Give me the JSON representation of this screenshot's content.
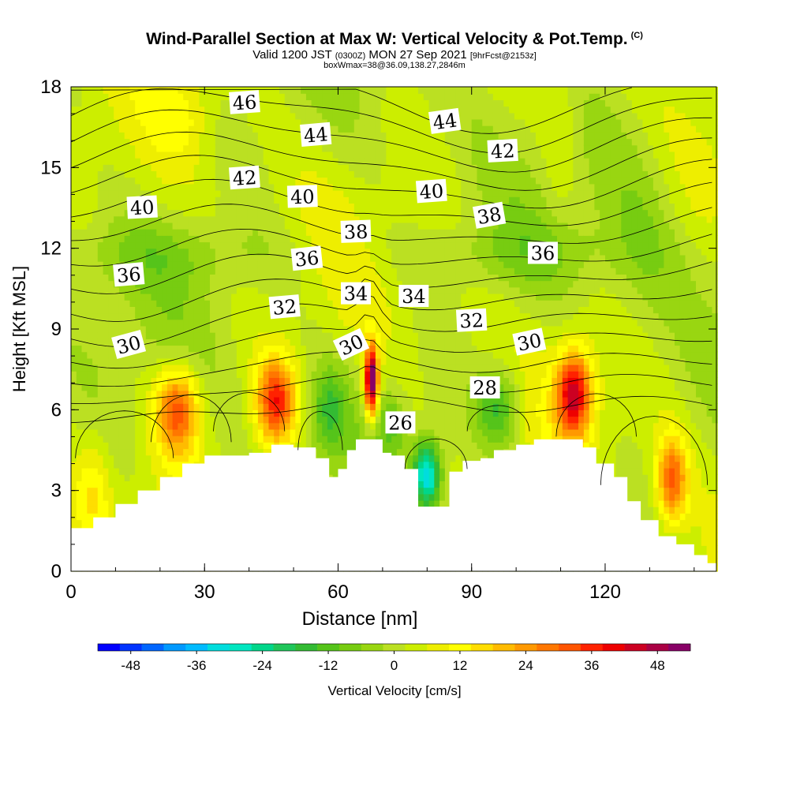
{
  "title": {
    "main": "Wind-Parallel Section at Max W: Vertical Velocity & Pot.Temp.",
    "copyright": "(C)",
    "valid_prefix": "Valid 1200 JST",
    "valid_z": "(0300Z)",
    "valid_date": "MON 27 Sep 2021",
    "fcst": "[9hrFcst@2153z]",
    "boxinfo": "boxWmax=38@36.09,138.27,2846m"
  },
  "chart_data": {
    "type": "heatmap",
    "xlabel": "Distance [nm]",
    "ylabel": "Height [Kft MSL]",
    "xlim": [
      0,
      145
    ],
    "ylim": [
      0,
      18
    ],
    "x_ticks": [
      0,
      30,
      60,
      90,
      120
    ],
    "y_ticks": [
      0,
      3,
      6,
      9,
      12,
      15,
      18
    ],
    "colorbar": {
      "label": "Vertical Velocity [cm/s]",
      "ticks": [
        -48,
        -36,
        -24,
        -12,
        0,
        12,
        24,
        36,
        48
      ],
      "range": [
        -54,
        54
      ],
      "step": 4,
      "colors": [
        "#0000ff",
        "#0033ff",
        "#0066ff",
        "#0099ff",
        "#00bbff",
        "#00dddd",
        "#00e6c0",
        "#00d68a",
        "#1fc65a",
        "#33bb33",
        "#55c41a",
        "#77cc11",
        "#99d611",
        "#bbe022",
        "#ccee00",
        "#eeee00",
        "#ffff00",
        "#ffdd00",
        "#ffbb00",
        "#ff9900",
        "#ff7700",
        "#ff5500",
        "#ff2200",
        "#ee0000",
        "#cc0022",
        "#aa0044",
        "#880066"
      ]
    },
    "terrain_kft": [
      [
        0,
        1.6
      ],
      [
        5,
        2.0
      ],
      [
        10,
        2.5
      ],
      [
        15,
        3.0
      ],
      [
        20,
        3.5
      ],
      [
        25,
        4.0
      ],
      [
        30,
        4.3
      ],
      [
        40,
        4.4
      ],
      [
        45,
        4.7
      ],
      [
        50,
        4.6
      ],
      [
        55,
        4.2
      ],
      [
        58,
        3.5
      ],
      [
        60,
        3.8
      ],
      [
        62,
        4.5
      ],
      [
        64,
        4.9
      ],
      [
        68,
        4.9
      ],
      [
        70,
        4.4
      ],
      [
        72,
        4.3
      ],
      [
        75,
        3.8
      ],
      [
        78,
        2.4
      ],
      [
        83,
        2.4
      ],
      [
        85,
        3.7
      ],
      [
        88,
        4.1
      ],
      [
        92,
        4.2
      ],
      [
        95,
        4.5
      ],
      [
        100,
        4.7
      ],
      [
        104,
        4.9
      ],
      [
        110,
        4.9
      ],
      [
        115,
        4.6
      ],
      [
        118,
        4.0
      ],
      [
        122,
        3.5
      ],
      [
        125,
        2.6
      ],
      [
        128,
        1.9
      ],
      [
        132,
        1.3
      ],
      [
        136,
        1.0
      ],
      [
        140,
        0.6
      ],
      [
        143,
        0.3
      ],
      [
        145,
        0.3
      ]
    ],
    "potential_temperature_labels": [
      {
        "value": "46",
        "x": 39,
        "y": 17.4,
        "angle": -4
      },
      {
        "value": "44",
        "x": 55,
        "y": 16.2,
        "angle": -5
      },
      {
        "value": "44",
        "x": 84,
        "y": 16.7,
        "angle": -8
      },
      {
        "value": "42",
        "x": 39,
        "y": 14.6,
        "angle": -4
      },
      {
        "value": "42",
        "x": 97,
        "y": 15.6,
        "angle": -3
      },
      {
        "value": "40",
        "x": 16,
        "y": 13.5,
        "angle": -3
      },
      {
        "value": "40",
        "x": 52,
        "y": 13.9,
        "angle": -2
      },
      {
        "value": "40",
        "x": 81,
        "y": 14.1,
        "angle": -4
      },
      {
        "value": "38",
        "x": 64,
        "y": 12.6,
        "angle": -2
      },
      {
        "value": "38",
        "x": 94,
        "y": 13.2,
        "angle": -10
      },
      {
        "value": "36",
        "x": 13,
        "y": 11.0,
        "angle": -5
      },
      {
        "value": "36",
        "x": 53,
        "y": 11.6,
        "angle": -6
      },
      {
        "value": "36",
        "x": 106,
        "y": 11.8,
        "angle": 0
      },
      {
        "value": "34",
        "x": 64,
        "y": 10.3,
        "angle": 0
      },
      {
        "value": "34",
        "x": 77,
        "y": 10.2,
        "angle": 0
      },
      {
        "value": "32",
        "x": 48,
        "y": 9.8,
        "angle": -5
      },
      {
        "value": "32",
        "x": 90,
        "y": 9.3,
        "angle": -3
      },
      {
        "value": "30",
        "x": 13,
        "y": 8.4,
        "angle": -15
      },
      {
        "value": "30",
        "x": 63,
        "y": 8.4,
        "angle": -25
      },
      {
        "value": "30",
        "x": 103,
        "y": 8.5,
        "angle": -12
      },
      {
        "value": "28",
        "x": 93,
        "y": 6.8,
        "angle": 0
      },
      {
        "value": "26",
        "x": 74,
        "y": 5.5,
        "angle": 0
      }
    ],
    "vertical_velocity_features_cm_s": [
      {
        "x": 24,
        "y": 6.0,
        "peak": 30
      },
      {
        "x": 46,
        "y": 6.3,
        "peak": 34
      },
      {
        "x": 67,
        "y": 7.1,
        "peak": 54
      },
      {
        "x": 80,
        "y": 3.8,
        "peak": -30
      },
      {
        "x": 113,
        "y": 6.6,
        "peak": 40
      },
      {
        "x": 135,
        "y": 3.4,
        "peak": 28
      },
      {
        "x": 58,
        "y": 6.0,
        "peak": -14
      },
      {
        "x": 96,
        "y": 6.1,
        "peak": -18
      }
    ]
  }
}
